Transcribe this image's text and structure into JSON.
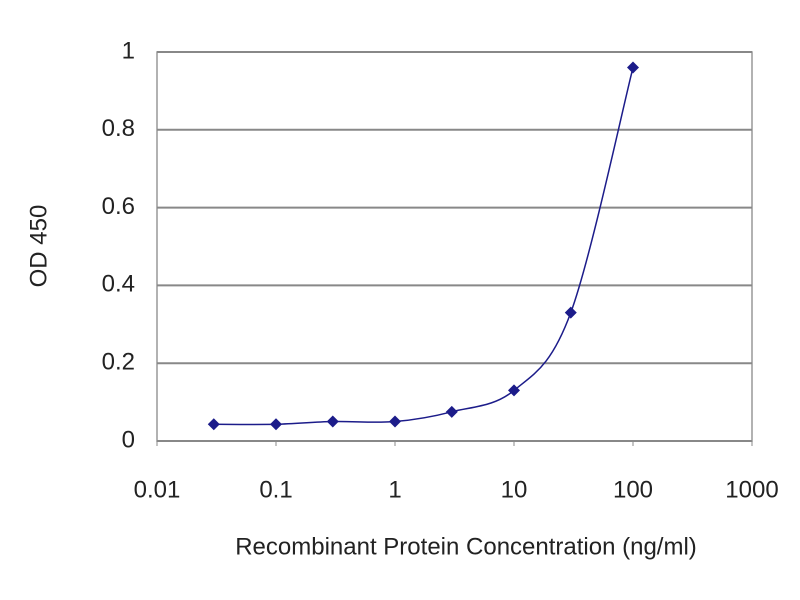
{
  "chart_data": {
    "type": "line",
    "x_label": "Recombinant Protein Concentration (ng/ml)",
    "y_label": "OD 450",
    "x": [
      0.03,
      0.1,
      0.3,
      1,
      3,
      10,
      30,
      100
    ],
    "series": [
      {
        "color": "#1c1c8a",
        "values": [
          0.043,
          0.043,
          0.05,
          0.05,
          0.075,
          0.13,
          0.33,
          0.96
        ]
      }
    ],
    "x_log": true,
    "xlim": [
      0.01,
      1000
    ],
    "xticks": [
      0.01,
      0.1,
      1,
      10,
      100,
      1000
    ],
    "ylim": [
      0,
      1
    ],
    "yticks": [
      0,
      0.2,
      0.4,
      0.6,
      0.8,
      1
    ],
    "grid": true
  }
}
